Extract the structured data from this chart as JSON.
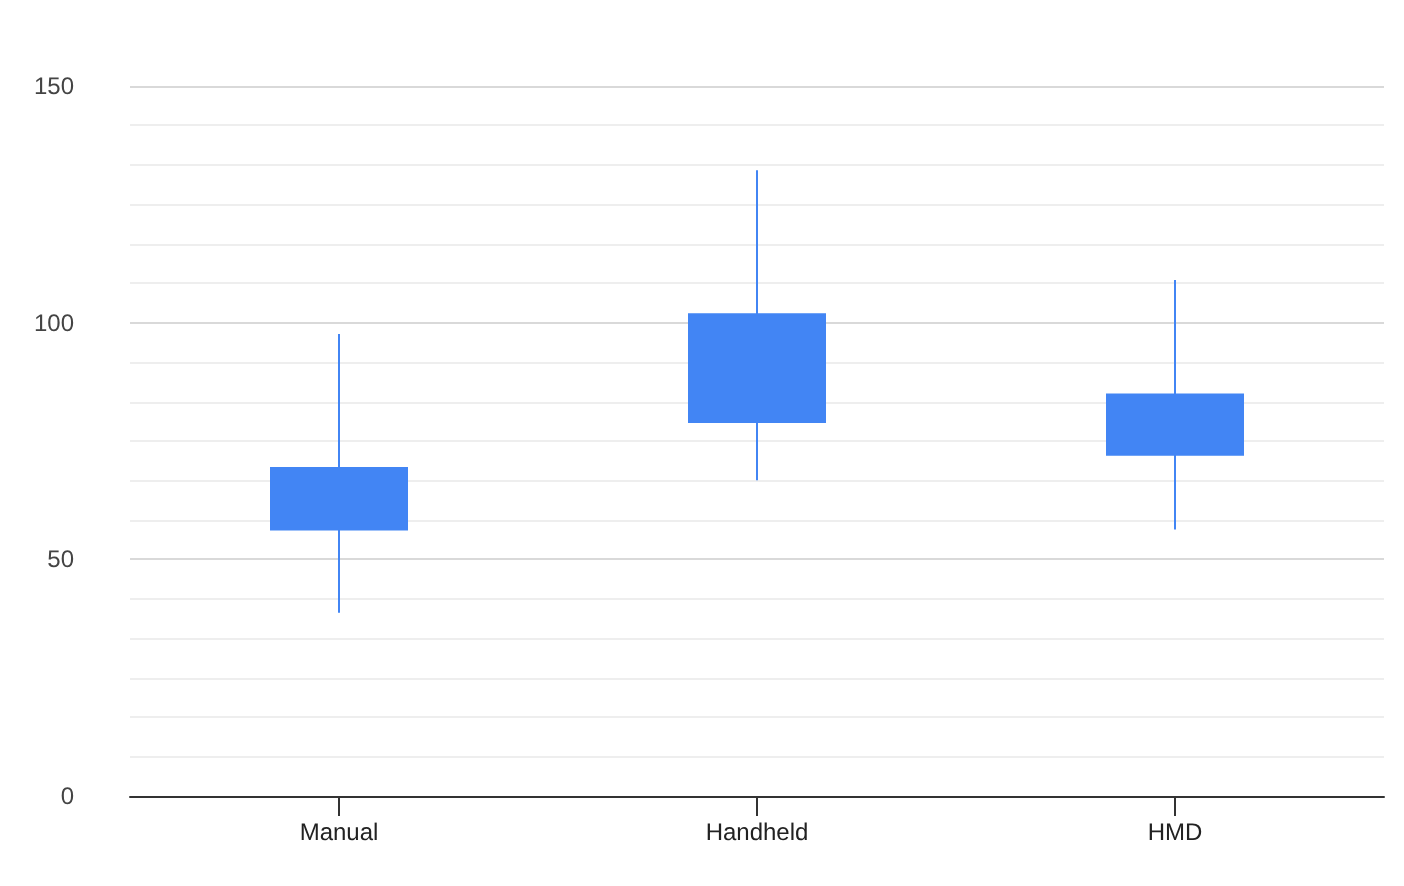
{
  "chart_data": {
    "type": "candlestick",
    "categories": [
      "Manual",
      "Handheld",
      "HMD"
    ],
    "series": [
      {
        "color": "#4285f4",
        "ohlc": [
          [
            56.3,
            97.6,
            38.7,
            69.3
          ],
          [
            79.0,
            132.2,
            66.7,
            101.8
          ],
          [
            72.1,
            109.0,
            56.3,
            84.8
          ]
        ]
      }
    ],
    "ylim": [
      0,
      150
    ],
    "yticks": [
      0,
      50,
      100,
      150
    ],
    "grid": "y"
  }
}
